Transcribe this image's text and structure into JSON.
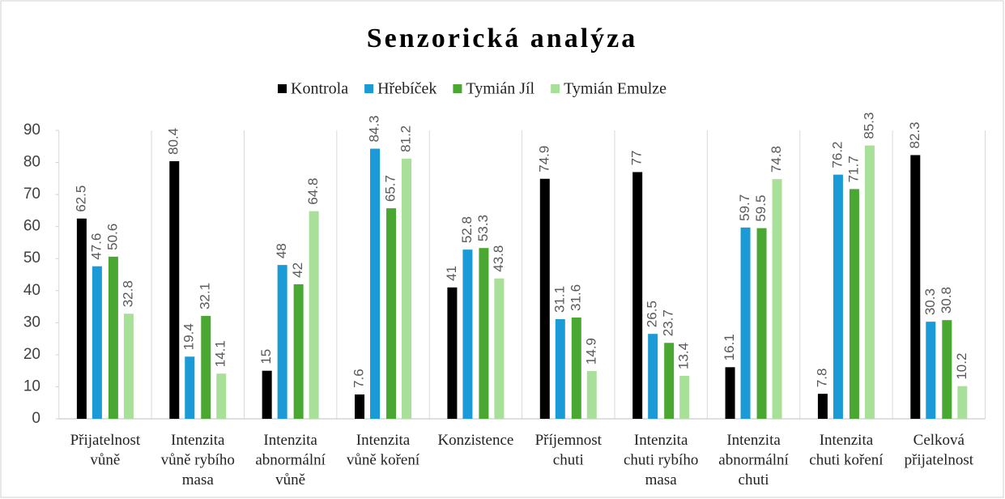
{
  "chart_data": {
    "type": "bar",
    "title": "Senzorická analýza",
    "categories": [
      "Přijatelnost\nvůně",
      "Intenzita\nvůně rybího\nmasa",
      "Intenzita\nabnormální\nvůně",
      "Intenzita\nvůně koření",
      "Konzistence",
      "Příjemnost\nchuti",
      "Intenzita\nchuti rybího\nmasa",
      "Intenzita\nabnormální\nchuti",
      "Intenzita\nchuti koření",
      "Celková\npřijatelnost"
    ],
    "series": [
      {
        "name": "Kontrola",
        "color": "#000000",
        "values": [
          62.5,
          80.4,
          15,
          7.6,
          41,
          74.9,
          77,
          16.1,
          7.8,
          82.3
        ]
      },
      {
        "name": "Hřebíček",
        "color": "#1a9ad6",
        "values": [
          47.6,
          19.4,
          48,
          84.3,
          52.8,
          31.1,
          26.5,
          59.7,
          76.2,
          30.3
        ]
      },
      {
        "name": "Tymián Jíl",
        "color": "#4aa832",
        "values": [
          50.6,
          32.1,
          42,
          65.7,
          53.3,
          31.6,
          23.7,
          59.5,
          71.7,
          30.8
        ]
      },
      {
        "name": "Tymián Emulze",
        "color": "#a8e09a",
        "values": [
          32.8,
          14.1,
          64.8,
          81.2,
          43.8,
          14.9,
          13.4,
          74.8,
          85.3,
          10.2
        ]
      }
    ],
    "ylim": [
      0,
      90
    ],
    "yticks": [
      0,
      10,
      20,
      30,
      40,
      50,
      60,
      70,
      80,
      90
    ],
    "legend": "top"
  }
}
